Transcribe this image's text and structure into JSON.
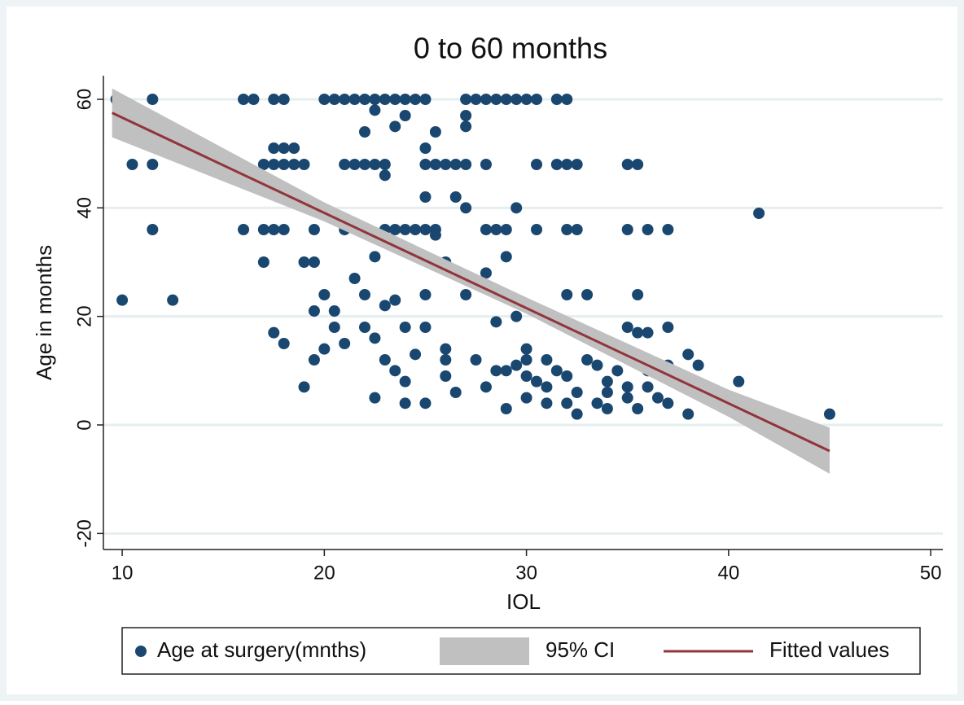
{
  "chart_data": {
    "type": "scatter",
    "title": "0 to 60 months",
    "x_label": "IOL",
    "y_label": "Age in months",
    "xlim": [
      9.07,
      50.6
    ],
    "ylim": [
      -22.95,
      64.35
    ],
    "xticks": [
      10,
      20,
      30,
      40,
      50
    ],
    "yticks": [
      -20,
      0,
      20,
      40,
      60
    ],
    "grid": true,
    "legend": "bottom",
    "series": [
      {
        "name": "Age at surgery(mnths)",
        "type": "scatter",
        "color": "#1a476f",
        "x": [
          9.7,
          11.5,
          16,
          16.5,
          17.5,
          18,
          20,
          20.5,
          21,
          21.5,
          22,
          22.5,
          23,
          23.5,
          24,
          24.5,
          25,
          27,
          27.5,
          28,
          28.5,
          29,
          29.5,
          30,
          30.5,
          31.5,
          32,
          10.5,
          11.5,
          17,
          17.5,
          18,
          18.5,
          19,
          21,
          21.5,
          22,
          22.5,
          23,
          25,
          25.5,
          26,
          26.5,
          27,
          28,
          30.5,
          31.5,
          32,
          32.5,
          35,
          35.5,
          11.5,
          16,
          17,
          17.5,
          18,
          19.5,
          21,
          22,
          23,
          23.5,
          24,
          24.5,
          25,
          25.5,
          28,
          28.5,
          29,
          30.5,
          32,
          32.5,
          35,
          36,
          37,
          17.5,
          18,
          18.5,
          25,
          10,
          12.5,
          17,
          17.5,
          18,
          19,
          19.5,
          19,
          19.5,
          20,
          19.5,
          20,
          20.5,
          20.5,
          21,
          21.5,
          22,
          22,
          22,
          22.5,
          23,
          22.5,
          22.5,
          23,
          23.5,
          23.5,
          24,
          24,
          24,
          23,
          23.5,
          22.5,
          24.5,
          25,
          25,
          25,
          25,
          25.5,
          25.5,
          26,
          26,
          26,
          26.5,
          26.5,
          27,
          27,
          27,
          27,
          27.5,
          28,
          28,
          28.5,
          29,
          29,
          29,
          29.5,
          29.5,
          30,
          30,
          30.5,
          31,
          31,
          31.5,
          32,
          32,
          32.5,
          32.5,
          33,
          33,
          33.5,
          34,
          34,
          34.5,
          35,
          35,
          35.5,
          35.5,
          35.5,
          36,
          36,
          36.5,
          37,
          37,
          37.5,
          38,
          38,
          38.5,
          39,
          40.5,
          41.5,
          45,
          29.5,
          30,
          31,
          33.5,
          34,
          36,
          37,
          24,
          26,
          28.5,
          30,
          32,
          35
        ],
        "values": [
          60,
          60,
          60,
          60,
          60,
          60,
          60,
          60,
          60,
          60,
          60,
          60,
          60,
          60,
          60,
          60,
          60,
          60,
          60,
          60,
          60,
          60,
          60,
          60,
          60,
          60,
          60,
          48,
          48,
          48,
          48,
          48,
          48,
          48,
          48,
          48,
          48,
          48,
          48,
          48,
          48,
          48,
          48,
          48,
          48,
          48,
          48,
          48,
          48,
          48,
          48,
          36,
          36,
          36,
          36,
          36,
          36,
          36,
          36,
          36,
          36,
          36,
          36,
          36,
          36,
          36,
          36,
          36,
          36,
          36,
          36,
          36,
          36,
          36,
          51,
          51,
          51,
          51,
          23,
          23,
          30,
          17,
          15,
          30,
          30,
          7,
          12,
          14,
          21,
          24,
          21,
          18,
          15,
          27,
          24,
          18,
          54,
          58,
          46,
          31,
          16,
          22,
          23,
          55,
          57,
          18,
          4,
          12,
          10,
          5,
          13,
          18,
          24,
          4,
          42,
          35,
          54,
          14,
          9,
          30,
          6,
          42,
          55,
          57,
          40,
          24,
          12,
          28,
          7,
          19,
          31,
          3,
          10,
          11,
          40,
          12,
          5,
          8,
          7,
          12,
          10,
          24,
          9,
          6,
          2,
          24,
          12,
          4,
          8,
          3,
          10,
          18,
          5,
          24,
          17,
          3,
          7,
          17,
          5,
          18,
          4,
          8,
          13,
          2,
          11,
          7,
          8,
          39,
          2,
          20,
          14,
          4,
          11,
          6,
          10,
          11,
          8,
          12,
          10,
          9,
          4,
          7
        ]
      },
      {
        "name": "95% CI",
        "type": "band",
        "color": "#c0c0c0",
        "x": [
          9.5,
          20,
          30,
          40,
          45
        ],
        "lower": [
          53,
          37.5,
          20.5,
          1.5,
          -9
        ],
        "upper": [
          62,
          41,
          23.5,
          6.5,
          -0.5
        ]
      },
      {
        "name": "Fitted values",
        "type": "line",
        "color": "#90353b",
        "x": [
          9.5,
          45
        ],
        "values": [
          57.5,
          -4.8
        ]
      }
    ]
  }
}
